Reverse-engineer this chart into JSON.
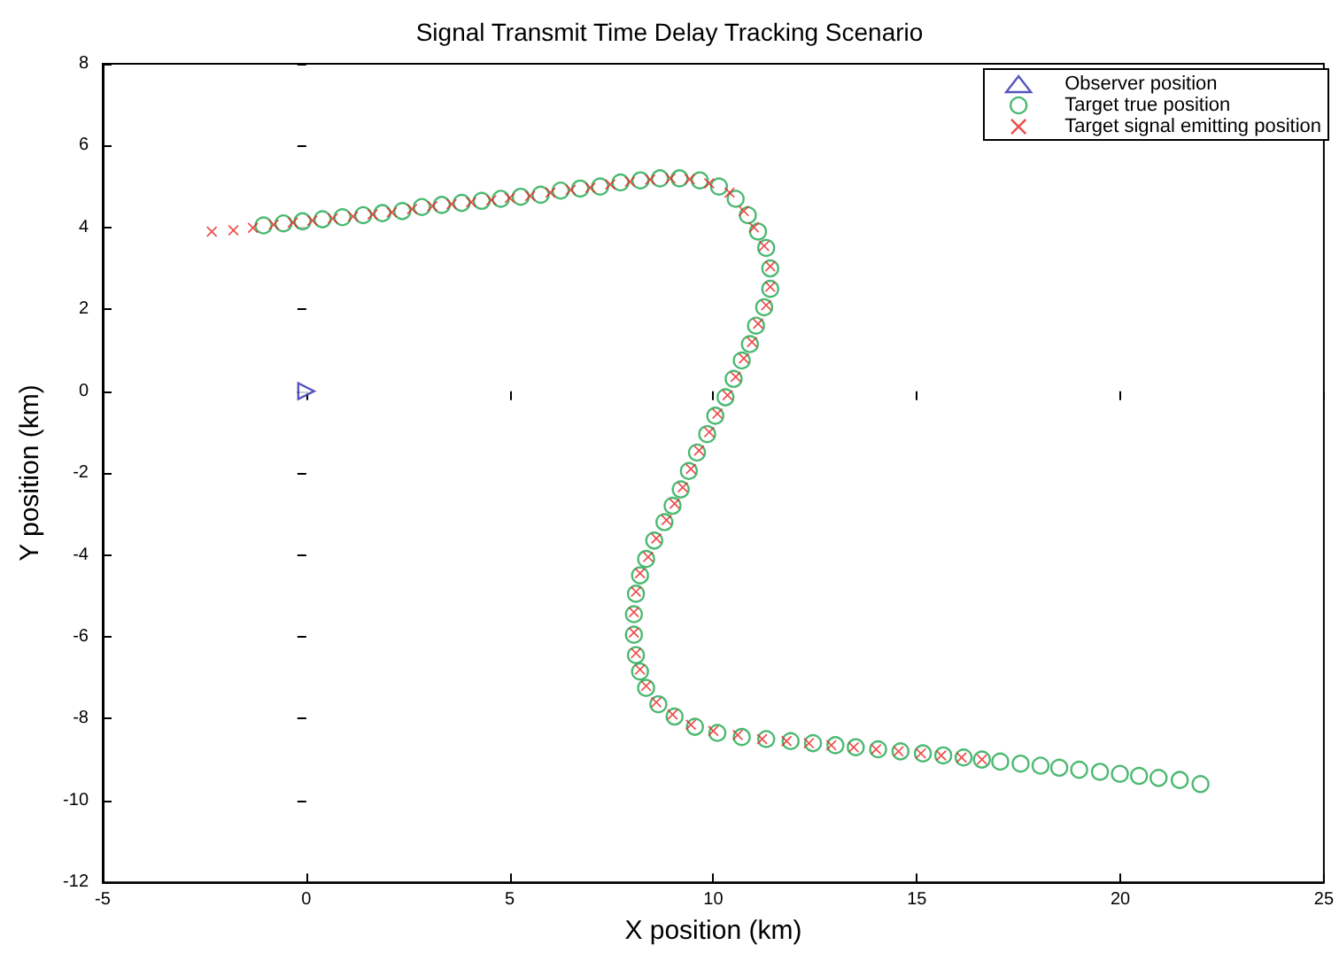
{
  "chart_data": {
    "type": "scatter",
    "title": "Signal Transmit Time Delay Tracking Scenario",
    "xlabel": "X position (km)",
    "ylabel": "Y position (km)",
    "xlim": [
      -5,
      25
    ],
    "xticks": [
      -5,
      0,
      5,
      10,
      15,
      20,
      25
    ],
    "ylim": [
      -12,
      8
    ],
    "yticks": [
      -12,
      -10,
      -8,
      -6,
      -4,
      -2,
      0,
      2,
      4,
      6,
      8
    ],
    "grid": false,
    "legend": "top right",
    "series": [
      {
        "name": "Observer position",
        "color": "#2b2bb0",
        "marker": "triangle",
        "x": [
          0
        ],
        "values": [
          0
        ]
      },
      {
        "name": "Target true position",
        "color": "#1fa84f",
        "marker": "circle",
        "x": [
          -1.05,
          -0.56,
          -0.09,
          0.4,
          0.89,
          1.4,
          1.87,
          2.36,
          2.84,
          3.33,
          3.82,
          4.31,
          4.78,
          5.27,
          5.76,
          6.25,
          6.73,
          7.22,
          7.72,
          8.21,
          8.69,
          9.17,
          9.67,
          10.14,
          10.55,
          10.85,
          11.1,
          11.3,
          11.4,
          11.4,
          11.25,
          11.05,
          10.9,
          10.7,
          10.5,
          10.3,
          10.05,
          9.85,
          9.6,
          9.4,
          9.2,
          9.0,
          8.8,
          8.55,
          8.35,
          8.2,
          8.1,
          8.05,
          8.05,
          8.1,
          8.2,
          8.35,
          8.65,
          9.05,
          9.55,
          10.1,
          10.7,
          11.3,
          11.9,
          12.45,
          13.0,
          13.5,
          14.05,
          14.6,
          15.15,
          15.65,
          16.15,
          16.6,
          17.05,
          17.55,
          18.04,
          18.5,
          18.99,
          19.5,
          19.99,
          20.46,
          20.94,
          21.46,
          21.97
        ],
        "values": [
          4.05,
          4.1,
          4.15,
          4.2,
          4.25,
          4.3,
          4.35,
          4.4,
          4.5,
          4.55,
          4.6,
          4.65,
          4.7,
          4.75,
          4.8,
          4.9,
          4.95,
          5.0,
          5.1,
          5.15,
          5.2,
          5.2,
          5.15,
          5.0,
          4.7,
          4.3,
          3.9,
          3.5,
          3.0,
          2.5,
          2.05,
          1.6,
          1.15,
          0.75,
          0.3,
          -0.15,
          -0.6,
          -1.05,
          -1.5,
          -1.95,
          -2.4,
          -2.8,
          -3.2,
          -3.65,
          -4.1,
          -4.5,
          -4.95,
          -5.45,
          -5.95,
          -6.45,
          -6.85,
          -7.25,
          -7.65,
          -7.95,
          -8.2,
          -8.35,
          -8.45,
          -8.5,
          -8.55,
          -8.6,
          -8.65,
          -8.7,
          -8.75,
          -8.8,
          -8.85,
          -8.9,
          -8.95,
          -9.0,
          -9.05,
          -9.1,
          -9.15,
          -9.2,
          -9.25,
          -9.3,
          -9.35,
          -9.4,
          -9.45,
          -9.5,
          -9.6
        ]
      },
      {
        "name": "Target signal emitting position",
        "color": "#e82020",
        "marker": "cross",
        "x": [
          -2.32,
          -1.79,
          -1.31,
          -0.8,
          -0.33,
          0.15,
          0.65,
          1.15,
          1.63,
          2.1,
          2.6,
          3.1,
          3.57,
          4.05,
          4.55,
          5.0,
          5.5,
          6.0,
          6.5,
          6.98,
          7.47,
          7.95,
          8.45,
          8.95,
          9.42,
          9.9,
          10.4,
          10.75,
          11.0,
          11.25,
          11.4,
          11.4,
          11.3,
          11.1,
          10.95,
          10.75,
          10.55,
          10.35,
          10.1,
          9.9,
          9.65,
          9.45,
          9.25,
          9.05,
          8.85,
          8.6,
          8.4,
          8.2,
          8.1,
          8.05,
          8.05,
          8.1,
          8.2,
          8.35,
          8.6,
          9.0,
          9.45,
          10.0,
          10.6,
          11.2,
          11.8,
          12.35,
          12.9,
          13.45,
          14.0,
          14.55,
          15.1,
          15.6,
          16.1,
          16.6
        ],
        "values": [
          3.9,
          3.93,
          3.99,
          4.07,
          4.12,
          4.17,
          4.22,
          4.27,
          4.32,
          4.37,
          4.45,
          4.52,
          4.57,
          4.62,
          4.67,
          4.72,
          4.77,
          4.85,
          4.92,
          4.97,
          5.05,
          5.12,
          5.17,
          5.2,
          5.18,
          5.08,
          4.85,
          4.4,
          4.0,
          3.55,
          3.05,
          2.55,
          2.1,
          1.65,
          1.2,
          0.8,
          0.35,
          -0.1,
          -0.55,
          -1.0,
          -1.45,
          -1.9,
          -2.35,
          -2.75,
          -3.15,
          -3.6,
          -4.05,
          -4.45,
          -4.9,
          -5.4,
          -5.9,
          -6.4,
          -6.8,
          -7.2,
          -7.6,
          -7.9,
          -8.15,
          -8.3,
          -8.4,
          -8.5,
          -8.55,
          -8.6,
          -8.65,
          -8.7,
          -8.75,
          -8.8,
          -8.85,
          -8.9,
          -8.95,
          -9.0
        ]
      }
    ]
  }
}
